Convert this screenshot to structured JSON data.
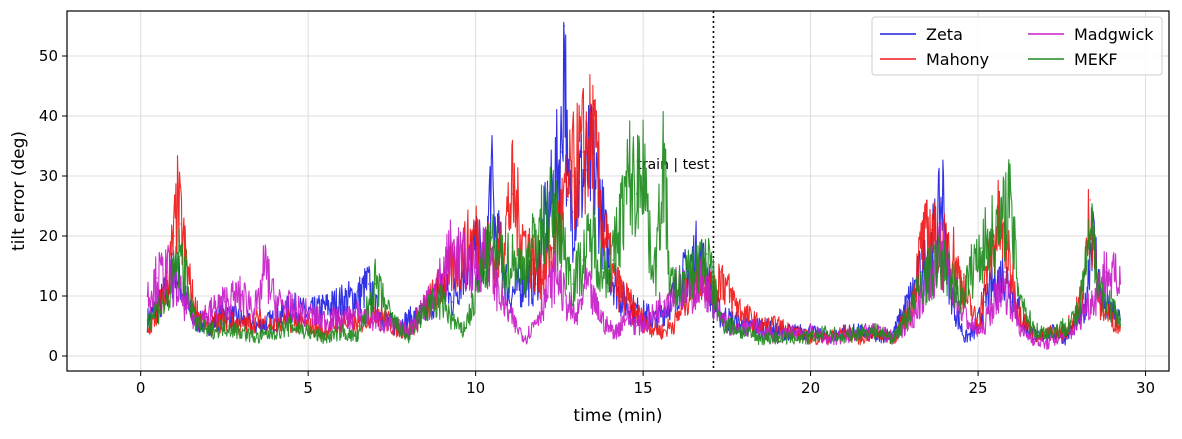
{
  "chart_data": {
    "type": "line",
    "xlabel": "time (min)",
    "ylabel": "tilt error (deg)",
    "xlim": [
      -2.2,
      30.7
    ],
    "ylim": [
      -2.5,
      57.5
    ],
    "xticks": [
      0,
      5,
      10,
      15,
      20,
      25,
      30
    ],
    "yticks": [
      0,
      10,
      20,
      30,
      40,
      50
    ],
    "grid": true,
    "legend_position": "top-right",
    "legend_columns": 2,
    "split_line": {
      "x": 17.1,
      "label": "train | test"
    },
    "series": [
      {
        "name": "Zeta",
        "color": "#1f1fe6",
        "x": [
          0.2,
          0.5,
          0.8,
          1.0,
          1.2,
          1.4,
          1.6,
          2.0,
          2.5,
          3.0,
          3.5,
          4.0,
          4.5,
          5.0,
          5.5,
          6.0,
          6.5,
          6.8,
          7.0,
          7.3,
          7.6,
          8.0,
          8.5,
          8.8,
          9.0,
          9.3,
          9.6,
          9.9,
          10.1,
          10.3,
          10.45,
          10.6,
          10.8,
          11.0,
          11.2,
          11.5,
          11.8,
          12.0,
          12.2,
          12.4,
          12.55,
          12.65,
          12.75,
          12.9,
          13.1,
          13.3,
          13.5,
          13.8,
          14.0,
          14.3,
          14.6,
          15.0,
          15.4,
          15.8,
          16.2,
          16.6,
          16.9,
          17.1,
          17.3,
          17.6,
          18.0,
          18.5,
          19.0,
          19.5,
          20.0,
          20.5,
          21.0,
          21.5,
          22.0,
          22.5,
          23.0,
          23.3,
          23.6,
          23.8,
          23.95,
          24.1,
          24.3,
          24.6,
          24.9,
          25.2,
          25.5,
          25.8,
          26.1,
          26.4,
          26.8,
          27.2,
          27.6,
          28.0,
          28.2,
          28.4,
          28.7,
          29.0,
          29.25
        ],
        "y": [
          6,
          8,
          11,
          15,
          12,
          8,
          6,
          5,
          7,
          6,
          5,
          6,
          8,
          7,
          8,
          9,
          10,
          12,
          8,
          6,
          5,
          6,
          7,
          10,
          12,
          9,
          14,
          16,
          18,
          14,
          30,
          20,
          16,
          10,
          11,
          13,
          12,
          20,
          24,
          30,
          34,
          55,
          26,
          24,
          29,
          31,
          32,
          22,
          15,
          10,
          8,
          7,
          6,
          9,
          13,
          17,
          14,
          9,
          7,
          6,
          5,
          5,
          4,
          4,
          4,
          3,
          4,
          4,
          3,
          4,
          10,
          14,
          18,
          22,
          27,
          14,
          8,
          3,
          4,
          9,
          12,
          14,
          9,
          5,
          3,
          4,
          3,
          6,
          8,
          21,
          9,
          7,
          6
        ]
      },
      {
        "name": "Mahony",
        "color": "#f01818",
        "x": [
          0.2,
          0.5,
          0.8,
          1.0,
          1.1,
          1.2,
          1.4,
          1.6,
          2.0,
          2.5,
          3.0,
          3.5,
          4.0,
          4.5,
          5.0,
          5.5,
          6.0,
          6.5,
          7.0,
          7.5,
          8.0,
          8.5,
          9.0,
          9.5,
          10.0,
          10.3,
          10.6,
          10.9,
          11.1,
          11.4,
          11.7,
          12.0,
          12.3,
          12.6,
          12.9,
          13.2,
          13.5,
          13.8,
          14.1,
          14.4,
          14.8,
          15.2,
          15.6,
          16.0,
          16.4,
          16.8,
          17.0,
          17.1,
          17.3,
          17.6,
          18.0,
          18.5,
          19.0,
          19.5,
          20.0,
          20.5,
          21.0,
          21.5,
          22.0,
          22.5,
          23.0,
          23.3,
          23.6,
          23.9,
          24.1,
          24.4,
          24.7,
          25.0,
          25.3,
          25.6,
          25.9,
          26.2,
          26.5,
          26.8,
          27.2,
          27.6,
          28.0,
          28.2,
          28.35,
          28.6,
          28.9,
          29.25
        ],
        "y": [
          4,
          7,
          12,
          20,
          25,
          22,
          14,
          8,
          5,
          6,
          5,
          6,
          5,
          6,
          5,
          4,
          6,
          5,
          8,
          5,
          4,
          8,
          12,
          16,
          20,
          18,
          15,
          22,
          27,
          20,
          16,
          14,
          18,
          24,
          30,
          34,
          36,
          22,
          13,
          10,
          7,
          5,
          4,
          6,
          11,
          14,
          12,
          9,
          14,
          10,
          7,
          5,
          5,
          4,
          3,
          3,
          4,
          3,
          4,
          3,
          8,
          18,
          21,
          16,
          20,
          14,
          9,
          5,
          15,
          22,
          16,
          8,
          5,
          3,
          4,
          4,
          8,
          14,
          26,
          9,
          7,
          5
        ]
      },
      {
        "name": "Madgwick",
        "color": "#c81ec8",
        "x": [
          0.2,
          0.5,
          0.8,
          1.0,
          1.2,
          1.4,
          1.6,
          2.0,
          2.5,
          3.0,
          3.5,
          3.7,
          4.0,
          4.5,
          5.0,
          5.5,
          6.0,
          6.5,
          7.0,
          7.5,
          8.0,
          8.5,
          9.0,
          9.3,
          9.6,
          10.0,
          10.3,
          10.6,
          10.9,
          11.2,
          11.5,
          11.8,
          12.1,
          12.4,
          12.7,
          13.0,
          13.3,
          13.6,
          13.9,
          14.2,
          14.5,
          14.8,
          15.2,
          15.6,
          16.0,
          16.4,
          16.8,
          17.1,
          17.4,
          17.8,
          18.2,
          18.6,
          19.0,
          19.5,
          20.0,
          20.5,
          21.0,
          21.5,
          22.0,
          22.5,
          23.0,
          23.3,
          23.6,
          23.9,
          24.2,
          24.5,
          24.8,
          25.1,
          25.4,
          25.7,
          26.0,
          26.3,
          26.6,
          27.0,
          27.4,
          27.8,
          28.2,
          28.5,
          28.8,
          29.25
        ],
        "y": [
          10,
          13,
          14,
          12,
          10,
          8,
          6,
          7,
          9,
          10,
          8,
          15,
          9,
          8,
          7,
          6,
          6,
          7,
          6,
          5,
          4,
          9,
          13,
          18,
          16,
          14,
          18,
          12,
          8,
          5,
          3,
          6,
          10,
          14,
          9,
          6,
          12,
          8,
          5,
          4,
          7,
          5,
          6,
          9,
          12,
          10,
          13,
          8,
          6,
          4,
          5,
          4,
          3,
          4,
          4,
          3,
          3,
          4,
          4,
          3,
          6,
          10,
          14,
          17,
          12,
          8,
          5,
          4,
          8,
          12,
          9,
          4,
          3,
          2,
          3,
          4,
          8,
          10,
          14,
          12
        ]
      },
      {
        "name": "MEKF",
        "color": "#1e8c1e",
        "x": [
          0.2,
          0.5,
          0.8,
          1.0,
          1.2,
          1.4,
          1.6,
          2.0,
          2.5,
          3.0,
          3.5,
          4.0,
          4.5,
          5.0,
          5.5,
          6.0,
          6.5,
          7.0,
          7.5,
          8.0,
          8.5,
          9.0,
          9.3,
          9.6,
          9.9,
          10.2,
          10.5,
          10.8,
          11.1,
          11.4,
          11.7,
          12.0,
          12.3,
          12.6,
          12.9,
          13.2,
          13.5,
          13.8,
          14.1,
          14.4,
          14.6,
          14.8,
          15.0,
          15.2,
          15.4,
          15.6,
          15.8,
          16.0,
          16.3,
          16.6,
          16.9,
          17.1,
          17.3,
          17.6,
          18.0,
          18.5,
          19.0,
          19.5,
          20.0,
          20.5,
          21.0,
          21.5,
          22.0,
          22.5,
          23.0,
          23.3,
          23.6,
          23.9,
          24.2,
          24.5,
          24.8,
          25.1,
          25.4,
          25.7,
          25.9,
          26.2,
          26.5,
          26.8,
          27.2,
          27.6,
          28.0,
          28.2,
          28.4,
          28.7,
          29.0,
          29.25
        ],
        "y": [
          6,
          8,
          9,
          14,
          17,
          12,
          6,
          4,
          5,
          4,
          3,
          4,
          5,
          4,
          3,
          4,
          3,
          12,
          6,
          3,
          8,
          9,
          6,
          4,
          8,
          14,
          18,
          15,
          16,
          14,
          18,
          22,
          24,
          19,
          12,
          16,
          20,
          14,
          16,
          25,
          30,
          27,
          35,
          18,
          15,
          34,
          12,
          11,
          13,
          15,
          17,
          12,
          6,
          5,
          4,
          3,
          3,
          3,
          3,
          4,
          3,
          4,
          4,
          3,
          8,
          12,
          14,
          16,
          13,
          10,
          14,
          18,
          20,
          21,
          27,
          12,
          6,
          4,
          4,
          5,
          7,
          14,
          20,
          10,
          8,
          5
        ]
      }
    ]
  }
}
